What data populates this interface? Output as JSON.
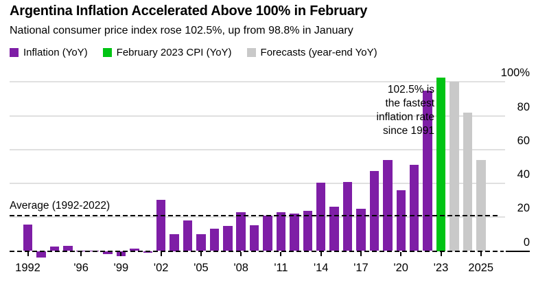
{
  "header": {
    "title": "Argentina Inflation Accelerated Above 100% in February",
    "subtitle": "National consumer price index rose 102.5%, up from 98.8% in January"
  },
  "legend": [
    {
      "name": "inflation",
      "label": "Inflation (YoY)",
      "color": "#7e1ea6"
    },
    {
      "name": "feb-2023-cpi",
      "label": "February 2023 CPI (YoY)",
      "color": "#00c414"
    },
    {
      "name": "forecasts",
      "label": "Forecasts (year-end YoY)",
      "color": "#c9c9c9"
    }
  ],
  "chart_data": {
    "type": "bar",
    "unit": "percent YoY",
    "ylim": [
      -6,
      104
    ],
    "grid": "horizontal",
    "colors": {
      "inflation": "#7e1ea6",
      "feb2023": "#00c414",
      "forecast": "#c9c9c9",
      "gridline": "#e0e0e0"
    },
    "y_ticks": [
      {
        "value": 0,
        "label": "0"
      },
      {
        "value": 20,
        "label": "20"
      },
      {
        "value": 40,
        "label": "40"
      },
      {
        "value": 60,
        "label": "60"
      },
      {
        "value": 80,
        "label": "80"
      },
      {
        "value": 100,
        "label": "100%"
      }
    ],
    "bars": [
      {
        "year": 1992,
        "value": 15.8,
        "series": "inflation"
      },
      {
        "year": 1993,
        "value": -4.0,
        "series": "inflation"
      },
      {
        "year": 1994,
        "value": 2.8,
        "series": "inflation"
      },
      {
        "year": 1995,
        "value": 3.0,
        "series": "inflation"
      },
      {
        "year": 1996,
        "value": 0.2,
        "series": "inflation"
      },
      {
        "year": 1997,
        "value": 0.3,
        "series": "inflation"
      },
      {
        "year": 1998,
        "value": -1.9,
        "series": "inflation"
      },
      {
        "year": 1999,
        "value": -2.9,
        "series": "inflation"
      },
      {
        "year": 2000,
        "value": 1.5,
        "series": "inflation"
      },
      {
        "year": 2001,
        "value": -1.2,
        "series": "inflation"
      },
      {
        "year": 2002,
        "value": 30.4,
        "series": "inflation"
      },
      {
        "year": 2003,
        "value": 10.0,
        "series": "inflation"
      },
      {
        "year": 2004,
        "value": 18.0,
        "series": "inflation"
      },
      {
        "year": 2005,
        "value": 10.1,
        "series": "inflation"
      },
      {
        "year": 2006,
        "value": 13.3,
        "series": "inflation"
      },
      {
        "year": 2007,
        "value": 14.7,
        "series": "inflation"
      },
      {
        "year": 2008,
        "value": 22.8,
        "series": "inflation"
      },
      {
        "year": 2009,
        "value": 15.1,
        "series": "inflation"
      },
      {
        "year": 2010,
        "value": 20.9,
        "series": "inflation"
      },
      {
        "year": 2011,
        "value": 22.9,
        "series": "inflation"
      },
      {
        "year": 2012,
        "value": 22.2,
        "series": "inflation"
      },
      {
        "year": 2013,
        "value": 23.8,
        "series": "inflation"
      },
      {
        "year": 2014,
        "value": 40.5,
        "series": "inflation"
      },
      {
        "year": 2015,
        "value": 26.3,
        "series": "inflation"
      },
      {
        "year": 2016,
        "value": 41.0,
        "series": "inflation"
      },
      {
        "year": 2017,
        "value": 24.8,
        "series": "inflation"
      },
      {
        "year": 2018,
        "value": 47.4,
        "series": "inflation"
      },
      {
        "year": 2019,
        "value": 54.0,
        "series": "inflation"
      },
      {
        "year": 2020,
        "value": 35.8,
        "series": "inflation"
      },
      {
        "year": 2021,
        "value": 51.0,
        "series": "inflation"
      },
      {
        "year": 2022,
        "value": 94.8,
        "series": "inflation"
      },
      {
        "year": 2023,
        "value": 102.5,
        "series": "feb2023"
      },
      {
        "year": 2023,
        "value": 100.0,
        "series": "forecast"
      },
      {
        "year": 2024,
        "value": 82.0,
        "series": "forecast"
      },
      {
        "year": 2025,
        "value": 54.0,
        "series": "forecast"
      }
    ],
    "x_ticks": [
      {
        "bar_index": 0,
        "label": "1992"
      },
      {
        "bar_index": 4,
        "label": "'96"
      },
      {
        "bar_index": 7,
        "label": "'99"
      },
      {
        "bar_index": 10,
        "label": "'02"
      },
      {
        "bar_index": 13,
        "label": "'05"
      },
      {
        "bar_index": 16,
        "label": "'08"
      },
      {
        "bar_index": 19,
        "label": "'11"
      },
      {
        "bar_index": 22,
        "label": "'14"
      },
      {
        "bar_index": 25,
        "label": "'17"
      },
      {
        "bar_index": 28,
        "label": "'20"
      },
      {
        "bar_index": 31,
        "label": "'23"
      },
      {
        "bar_index": 34,
        "label": "2025"
      }
    ],
    "average_line": {
      "label": "Average (1992-2022)",
      "value": 21
    },
    "annotation": {
      "lines": [
        "102.5% is",
        "the fastest",
        "inflation rate",
        "since 1991"
      ]
    }
  }
}
